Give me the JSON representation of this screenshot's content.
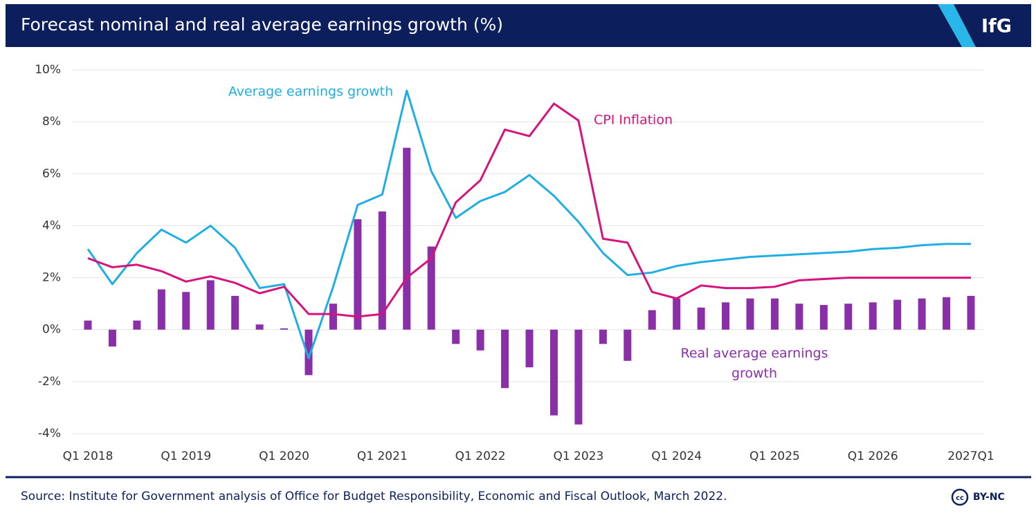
{
  "header": {
    "logo": "IfG"
  },
  "chart_data": {
    "type": "bar",
    "title": "Forecast nominal and real average earnings growth (%)",
    "categories": [
      "Q1 2018",
      null,
      null,
      null,
      "Q1 2019",
      null,
      null,
      null,
      "Q1 2020",
      null,
      null,
      null,
      "Q1 2021",
      null,
      null,
      null,
      "Q1 2022",
      null,
      null,
      null,
      "Q1 2023",
      null,
      null,
      null,
      "Q1 2024",
      null,
      null,
      null,
      "Q1 2025",
      null,
      null,
      null,
      "Q1 2026",
      null,
      null,
      null,
      "2027Q1"
    ],
    "series": [
      {
        "name": "Real average earnings growth",
        "type": "bar",
        "color": "#8a2fa8",
        "values": [
          0.35,
          -0.65,
          0.35,
          1.55,
          1.45,
          1.9,
          1.3,
          0.2,
          0.05,
          -1.75,
          1.0,
          4.25,
          4.55,
          7.0,
          3.2,
          -0.55,
          -0.8,
          -2.25,
          -1.45,
          -3.3,
          -3.65,
          -0.55,
          -1.2,
          0.75,
          1.2,
          0.85,
          1.05,
          1.2,
          1.2,
          1.0,
          0.95,
          1.0,
          1.05,
          1.15,
          1.2,
          1.25,
          1.3
        ]
      },
      {
        "name": "Average earnings growth",
        "type": "line",
        "color": "#1eaee4",
        "values": [
          3.1,
          1.75,
          2.95,
          3.85,
          3.35,
          4.0,
          3.15,
          1.6,
          1.75,
          -1.1,
          1.65,
          4.8,
          5.2,
          9.2,
          6.1,
          4.3,
          4.95,
          5.3,
          5.95,
          5.15,
          4.15,
          2.95,
          2.1,
          2.2,
          2.45,
          2.6,
          2.7,
          2.8,
          2.85,
          2.9,
          2.95,
          3.0,
          3.1,
          3.15,
          3.25,
          3.3,
          3.3
        ]
      },
      {
        "name": "CPI Inflation",
        "type": "line",
        "color": "#d6137d",
        "values": [
          2.75,
          2.4,
          2.5,
          2.25,
          1.85,
          2.05,
          1.8,
          1.4,
          1.65,
          0.6,
          0.6,
          0.5,
          0.6,
          2.0,
          2.75,
          4.9,
          5.75,
          7.7,
          7.45,
          8.7,
          8.05,
          3.5,
          3.35,
          1.45,
          1.2,
          1.7,
          1.6,
          1.6,
          1.65,
          1.9,
          1.95,
          2.0,
          2.0,
          2.0,
          2.0,
          2.0,
          2.0
        ]
      }
    ],
    "ylim": [
      -4,
      10
    ],
    "yticks": [
      {
        "value": -4,
        "label": "-4%"
      },
      {
        "value": -2,
        "label": "-2%"
      },
      {
        "value": 0,
        "label": "0%"
      },
      {
        "value": 2,
        "label": "2%"
      },
      {
        "value": 4,
        "label": "4%"
      },
      {
        "value": 6,
        "label": "6%"
      },
      {
        "value": 8,
        "label": "8%"
      },
      {
        "value": 10,
        "label": "10%"
      }
    ],
    "grid": true,
    "source": "Source: Institute for Government analysis of Office for Budget Responsibility, Economic and Fiscal Outlook, March 2022."
  },
  "footer": {
    "license": "BY-NC"
  }
}
